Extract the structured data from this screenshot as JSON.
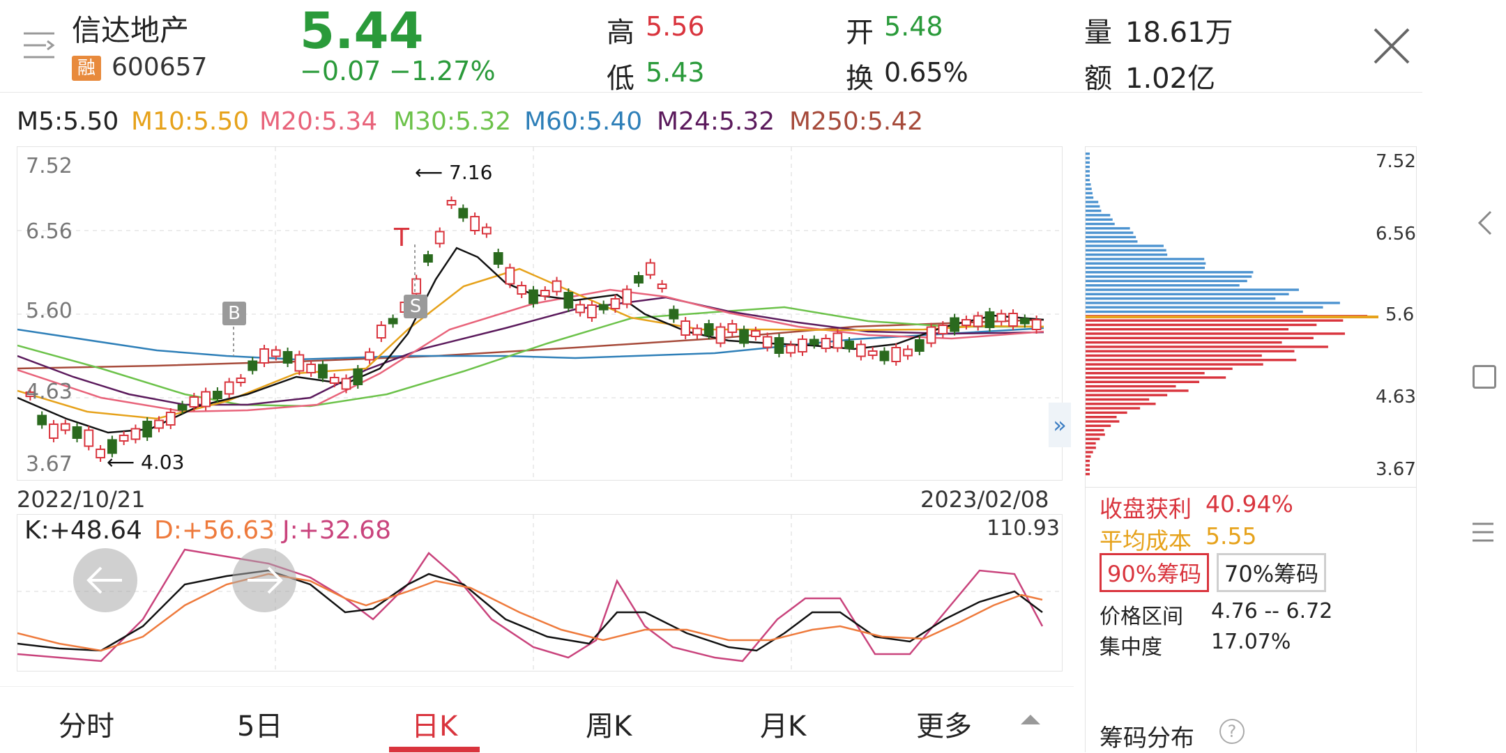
{
  "stock": {
    "name": "信达地产",
    "rong": "融",
    "code": "600657"
  },
  "quote": {
    "price": "5.44",
    "change": "−0.07",
    "change_pct": "−1.27%",
    "high_label": "高",
    "high": "5.56",
    "low_label": "低",
    "low": "5.43",
    "open_label": "开",
    "open": "5.48",
    "turnover_label": "换",
    "turnover": "0.65%",
    "volume_label": "量",
    "volume": "18.61万",
    "amount_label": "额",
    "amount": "1.02亿"
  },
  "ma": [
    {
      "text": "M5:5.50",
      "color": "#222222"
    },
    {
      "text": "M10:5.50",
      "color": "#e6a21b"
    },
    {
      "text": "M20:5.34",
      "color": "#e8637a"
    },
    {
      "text": "M30:5.32",
      "color": "#6cc24a"
    },
    {
      "text": "M60:5.40",
      "color": "#2e7fb8"
    },
    {
      "text": "M24:5.32",
      "color": "#5b1a5c"
    },
    {
      "text": "M250:5.42",
      "color": "#a64a3a"
    }
  ],
  "kline": {
    "y_ticks": [
      "7.52",
      "6.56",
      "5.60",
      "4.63",
      "3.67"
    ],
    "high_note": "7.16",
    "low_note": "4.03",
    "marker_b": "B",
    "marker_s": "S",
    "marker_t": "T",
    "date_start": "2022/10/21",
    "date_end": "2023/02/08"
  },
  "kdj": {
    "k": "K:+48.64",
    "d": "D:+56.63",
    "j": "J:+32.68",
    "max": "110.93"
  },
  "chips": {
    "y_ticks": [
      "7.52",
      "6.56",
      "5.6",
      "4.63",
      "3.67"
    ],
    "profit_label": "收盘获利",
    "profit": "40.94%",
    "avg_label": "平均成本",
    "avg": "5.55",
    "btn90": "90%筹码",
    "btn70": "70%筹码",
    "range_label": "价格区间",
    "range": "4.76 -- 6.72",
    "conc_label": "集中度",
    "conc": "17.07%",
    "dist_label": "筹码分布",
    "help": "?"
  },
  "tabs": [
    "分时",
    "5日",
    "日K",
    "周K",
    "月K",
    "更多"
  ],
  "active_tab": "日K",
  "colors": {
    "up": "#d9343d",
    "down": "#2a6a1e",
    "accent": "#d9343d"
  },
  "icons": [
    "menu-icon",
    "close-icon",
    "expand-icon",
    "arrow-left-icon",
    "arrow-right-icon",
    "chevron-left-icon",
    "square-icon",
    "hamburger-icon",
    "triangle-up-icon"
  ]
}
